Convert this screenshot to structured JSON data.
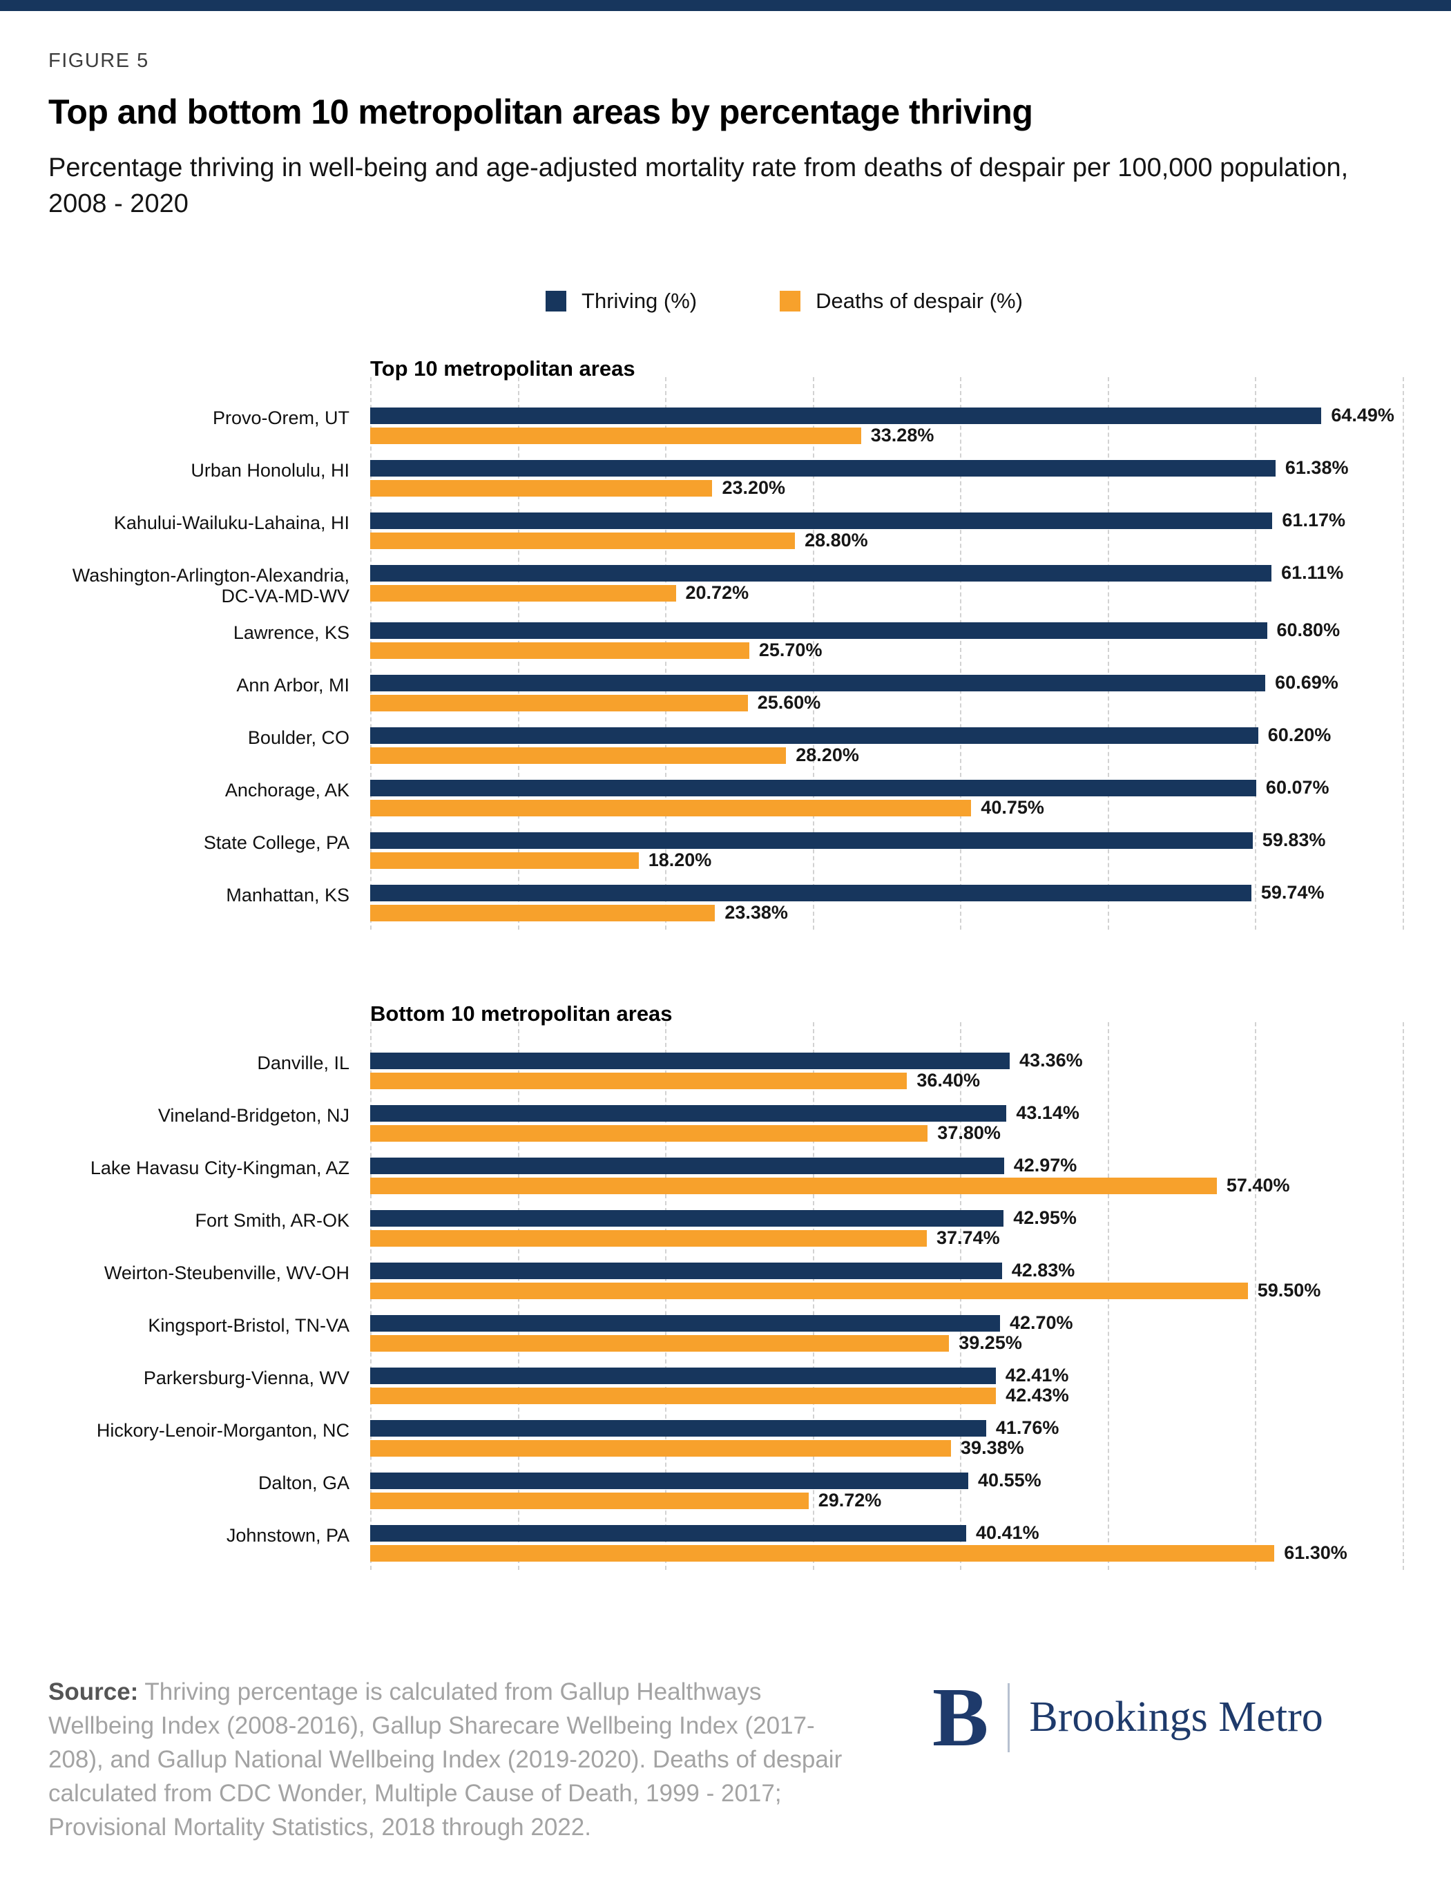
{
  "figure_label": "FIGURE 5",
  "title": "Top and bottom 10 metropolitan areas by percentage thriving",
  "subtitle": "Percentage thriving in well-being and age-adjusted mortality rate from deaths of despair per 100,000 population, 2008 - 2020",
  "legend": [
    {
      "label": "Thriving (%)",
      "color": "#17365D"
    },
    {
      "label": "Deaths of despair (%)",
      "color": "#F7A12C"
    }
  ],
  "colors": {
    "thriving_navy": "#17365D",
    "despair_orange": "#F7A12C",
    "top_accent_bar": "#17365D",
    "gridline": "#d2d2d2"
  },
  "chart_data": [
    {
      "type": "bar",
      "orientation": "horizontal",
      "title": "Top 10 metropolitan areas",
      "xlim": [
        0,
        70
      ],
      "gridlines": [
        0,
        10,
        20,
        30,
        40,
        50,
        60,
        70
      ],
      "grid": "vertical-dashed",
      "legend_position": "top-center",
      "series_names": [
        "Thriving (%)",
        "Deaths of despair (%)"
      ],
      "rows": [
        {
          "label": "Provo-Orem, UT",
          "thriving": 64.49,
          "despair": 33.28
        },
        {
          "label": "Urban Honolulu, HI",
          "thriving": 61.38,
          "despair": 23.2
        },
        {
          "label": "Kahului-Wailuku-Lahaina, HI",
          "thriving": 61.17,
          "despair": 28.8
        },
        {
          "label": "Washington-Arlington-Alexandria, DC-VA-MD-WV",
          "thriving": 61.11,
          "despair": 20.72
        },
        {
          "label": "Lawrence, KS",
          "thriving": 60.8,
          "despair": 25.7
        },
        {
          "label": "Ann Arbor, MI",
          "thriving": 60.69,
          "despair": 25.6
        },
        {
          "label": "Boulder, CO",
          "thriving": 60.2,
          "despair": 28.2
        },
        {
          "label": "Anchorage, AK",
          "thriving": 60.07,
          "despair": 40.75
        },
        {
          "label": "State College, PA",
          "thriving": 59.83,
          "despair": 18.2
        },
        {
          "label": "Manhattan, KS",
          "thriving": 59.74,
          "despair": 23.38
        }
      ]
    },
    {
      "type": "bar",
      "orientation": "horizontal",
      "title": "Bottom 10 metropolitan areas",
      "xlim": [
        0,
        70
      ],
      "gridlines": [
        0,
        10,
        20,
        30,
        40,
        50,
        60,
        70
      ],
      "grid": "vertical-dashed",
      "series_names": [
        "Thriving (%)",
        "Deaths of despair (%)"
      ],
      "rows": [
        {
          "label": "Danville, IL",
          "thriving": 43.36,
          "despair": 36.4
        },
        {
          "label": "Vineland-Bridgeton, NJ",
          "thriving": 43.14,
          "despair": 37.8
        },
        {
          "label": "Lake Havasu City-Kingman, AZ",
          "thriving": 42.97,
          "despair": 57.4
        },
        {
          "label": "Fort Smith, AR-OK",
          "thriving": 42.95,
          "despair": 37.74
        },
        {
          "label": "Weirton-Steubenville, WV-OH",
          "thriving": 42.83,
          "despair": 59.5
        },
        {
          "label": "Kingsport-Bristol, TN-VA",
          "thriving": 42.7,
          "despair": 39.25
        },
        {
          "label": "Parkersburg-Vienna, WV",
          "thriving": 42.41,
          "despair": 42.43
        },
        {
          "label": "Hickory-Lenoir-Morganton, NC",
          "thriving": 41.76,
          "despair": 39.38
        },
        {
          "label": "Dalton, GA",
          "thriving": 40.55,
          "despair": 29.72
        },
        {
          "label": "Johnstown, PA",
          "thriving": 40.41,
          "despair": 61.3
        }
      ]
    }
  ],
  "footer": {
    "source_bold": "Source:",
    "source_text": "Thriving percentage is calculated from Gallup Healthways Wellbeing Index (2008-2016), Gallup Sharecare Wellbeing Index (2017-208), and Gallup National Wellbeing Index (2019-2020). Deaths of despair calculated from CDC Wonder, Multiple Cause of Death, 1999 - 2017; Provisional Mortality Statistics, 2018 through 2022.",
    "logo": {
      "letter": "B",
      "name": "Brookings Metro"
    }
  }
}
